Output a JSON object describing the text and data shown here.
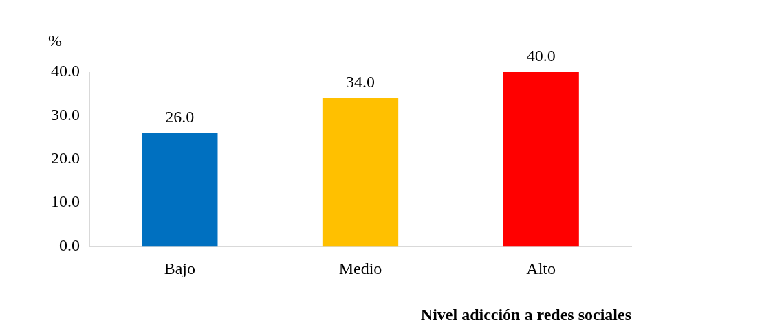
{
  "chart_data": {
    "type": "bar",
    "ylabel": "%",
    "xlabel": "Nivel adicción a redes sociales",
    "categories": [
      "Bajo",
      "Medio",
      "Alto"
    ],
    "values": [
      26.0,
      34.0,
      40.0
    ],
    "colors": [
      "#0070c0",
      "#ffc000",
      "#ff0000"
    ],
    "ylim": [
      0,
      40
    ],
    "yticks": [
      {
        "value": 0,
        "label": "0.0"
      },
      {
        "value": 10,
        "label": "10.0"
      },
      {
        "value": 20,
        "label": "20.0"
      },
      {
        "value": 30,
        "label": "30.0"
      },
      {
        "value": 40,
        "label": "40.0"
      }
    ],
    "value_labels": [
      "26.0",
      "34.0",
      "40.0"
    ],
    "grid": false,
    "legend": false
  }
}
